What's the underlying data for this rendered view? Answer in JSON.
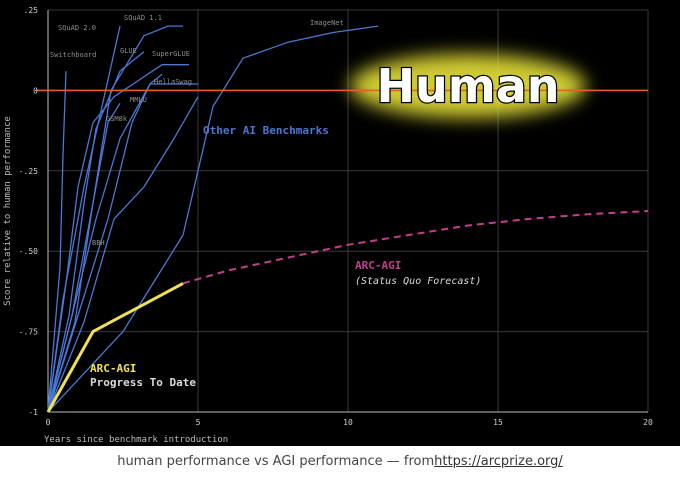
{
  "caption": {
    "text": "human performance vs AGI performance — from ",
    "link": "https://arcprize.org/"
  },
  "chart_data": {
    "type": "line",
    "title": "",
    "xlabel": "Years since benchmark introduction",
    "ylabel": "Score relative to human performance",
    "xlim": [
      0,
      20
    ],
    "ylim": [
      -1,
      0.25
    ],
    "xticks": [
      0,
      5,
      10,
      15,
      20
    ],
    "yticks": [
      {
        "value": 0.25,
        "label": ".25"
      },
      {
        "value": 0,
        "label": "0"
      },
      {
        "value": -0.25,
        "label": "-.25"
      },
      {
        "value": -0.5,
        "label": "-.50"
      },
      {
        "value": -0.75,
        "label": "-.75"
      },
      {
        "value": -1,
        "label": "-1"
      }
    ],
    "grid": true,
    "human_line": {
      "y": 0,
      "label": "Human",
      "color": "#e0622b"
    },
    "colors": {
      "benchmark": "#4a78d4",
      "arc": "#f0e054",
      "forecast": "#c23f8f",
      "grid": "#3a3a3a"
    },
    "annotations": {
      "other": "Other AI Benchmarks",
      "arc_title": "ARC-AGI",
      "arc_sub": "Progress To Date",
      "forecast_title": "ARC-AGI",
      "forecast_sub": "(Status Quo Forecast)"
    },
    "benchmarks": [
      {
        "name": "Switchboard",
        "points": [
          [
            0,
            -1
          ],
          [
            0.4,
            -0.55
          ],
          [
            0.5,
            -0.2
          ],
          [
            0.6,
            0.06
          ]
        ]
      },
      {
        "name": "SQuAD 2.0",
        "points": [
          [
            0,
            -1
          ],
          [
            0.5,
            -0.65
          ],
          [
            1.2,
            -0.3
          ],
          [
            1.8,
            -0.05
          ],
          [
            2.4,
            0.2
          ]
        ]
      },
      {
        "name": "SQuAD 1.1",
        "points": [
          [
            0,
            -1
          ],
          [
            0.8,
            -0.7
          ],
          [
            1.5,
            -0.35
          ],
          [
            2.1,
            0
          ],
          [
            3.2,
            0.17
          ],
          [
            4,
            0.2
          ],
          [
            4.5,
            0.2
          ]
        ]
      },
      {
        "name": "GLUE",
        "points": [
          [
            0,
            -1
          ],
          [
            0.7,
            -0.7
          ],
          [
            1.2,
            -0.35
          ],
          [
            1.6,
            -0.12
          ],
          [
            2.4,
            0.06
          ],
          [
            3.2,
            0.12
          ]
        ]
      },
      {
        "name": "SuperGLUE",
        "points": [
          [
            0,
            -1
          ],
          [
            0.6,
            -0.6
          ],
          [
            1,
            -0.3
          ],
          [
            1.5,
            -0.1
          ],
          [
            2.2,
            -0.02
          ],
          [
            3.8,
            0.08
          ],
          [
            4.7,
            0.08
          ]
        ]
      },
      {
        "name": "HellaSwag",
        "points": [
          [
            0,
            -1
          ],
          [
            0.8,
            -0.7
          ],
          [
            1.6,
            -0.4
          ],
          [
            2.4,
            -0.15
          ],
          [
            3.4,
            0.02
          ],
          [
            4,
            0.02
          ],
          [
            5,
            0.02
          ]
        ]
      },
      {
        "name": "MMLU",
        "points": [
          [
            0,
            -1
          ],
          [
            1,
            -0.7
          ],
          [
            2,
            -0.4
          ],
          [
            2.8,
            -0.1
          ],
          [
            3.4,
            0.02
          ],
          [
            3.8,
            0.05
          ]
        ]
      },
      {
        "name": "GSM8k",
        "points": [
          [
            0,
            -1
          ],
          [
            0.9,
            -0.72
          ],
          [
            1.5,
            -0.35
          ],
          [
            2,
            -0.1
          ],
          [
            2.4,
            -0.04
          ]
        ]
      },
      {
        "name": "BBH",
        "points": [
          [
            0,
            -1
          ],
          [
            1.2,
            -0.72
          ],
          [
            2.2,
            -0.4
          ],
          [
            3.2,
            -0.3
          ],
          [
            4.2,
            -0.15
          ],
          [
            5,
            -0.02
          ]
        ]
      },
      {
        "name": "ImageNet",
        "points": [
          [
            0,
            -1
          ],
          [
            2.5,
            -0.75
          ],
          [
            4.5,
            -0.45
          ],
          [
            5.5,
            -0.05
          ],
          [
            6.5,
            0.1
          ],
          [
            8,
            0.15
          ],
          [
            9.5,
            0.18
          ],
          [
            11,
            0.2
          ]
        ]
      }
    ],
    "arc_progress": {
      "points": [
        [
          0,
          -1
        ],
        [
          1.5,
          -0.75
        ],
        [
          4.5,
          -0.6
        ]
      ]
    },
    "arc_forecast": {
      "points": [
        [
          4.5,
          -0.6
        ],
        [
          6,
          -0.56
        ],
        [
          8,
          -0.52
        ],
        [
          10,
          -0.48
        ],
        [
          12,
          -0.45
        ],
        [
          14,
          -0.42
        ],
        [
          16,
          -0.4
        ],
        [
          18,
          -0.385
        ],
        [
          20,
          -0.375
        ]
      ]
    }
  }
}
